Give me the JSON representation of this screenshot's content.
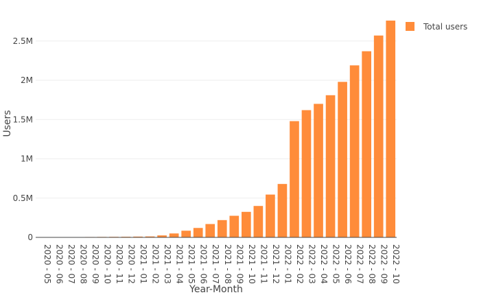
{
  "chart_data": {
    "type": "bar",
    "categories": [
      "2020 - 05",
      "2020 - 06",
      "2020 - 07",
      "2020 - 08",
      "2020 - 09",
      "2020 - 10",
      "2020 - 11",
      "2020 - 12",
      "2021 - 01",
      "2021 - 02",
      "2021 - 03",
      "2021 - 04",
      "2021 - 05",
      "2021 - 06",
      "2021 - 07",
      "2021 - 08",
      "2021 - 09",
      "2021 - 10",
      "2021 - 11",
      "2021 - 12",
      "2022 - 01",
      "2022 - 02",
      "2022 - 03",
      "2022 - 04",
      "2022 - 05",
      "2022 - 06",
      "2022 - 07",
      "2022 - 08",
      "2022 - 09",
      "2022 - 10"
    ],
    "series": [
      {
        "name": "Total users",
        "color": "#ff8c3a",
        "values": [
          1000,
          2000,
          3000,
          4000,
          5000,
          6000,
          7000,
          8000,
          10000,
          12000,
          25000,
          50000,
          85000,
          120000,
          170000,
          220000,
          275000,
          325000,
          400000,
          545000,
          680000,
          1480000,
          1620000,
          1700000,
          1810000,
          1980000,
          2190000,
          2370000,
          2570000,
          2760000
        ]
      }
    ],
    "xlabel": "Year-Month",
    "ylabel": "Users",
    "ylim": [
      0,
      2900000
    ],
    "yticks": [
      0,
      500000,
      1000000,
      1500000,
      2000000,
      2500000
    ],
    "ytick_labels": [
      "0",
      "0.5M",
      "1M",
      "1.5M",
      "2M",
      "2.5M"
    ],
    "grid": true,
    "legend_position": "top-right"
  }
}
